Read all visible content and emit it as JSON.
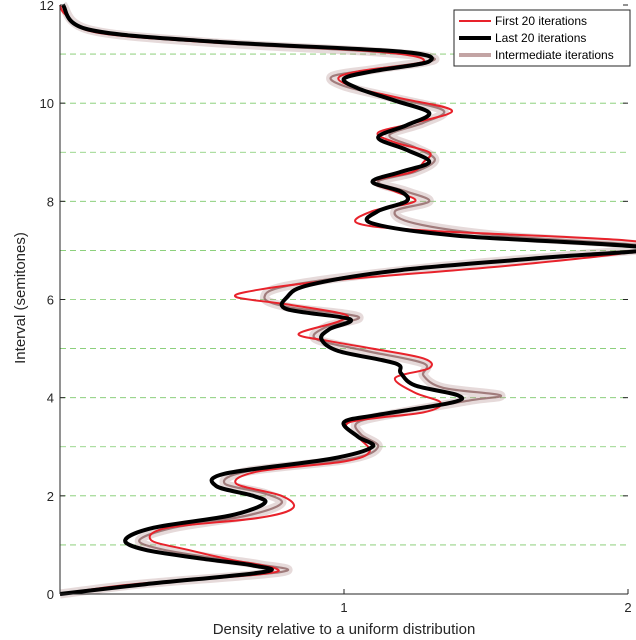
{
  "chart_data": {
    "type": "line",
    "title": "",
    "xlabel": "Density relative to a uniform distribution",
    "ylabel": "Interval (semitones)",
    "xlim": [
      0,
      2
    ],
    "ylim": [
      0,
      12
    ],
    "x_ticks": [
      1,
      2
    ],
    "x_tick_labels": [
      "1",
      "2"
    ],
    "y_ticks": [
      0,
      2,
      4,
      6,
      8,
      10,
      12
    ],
    "y_tick_labels": [
      "0",
      "2",
      "4",
      "6",
      "8",
      "10",
      "12"
    ],
    "reference_gridlines_y": [
      1,
      2,
      3,
      4,
      5,
      6,
      7,
      8,
      9,
      10,
      11
    ],
    "grid": "horizontal dashed reference lines at each semitone",
    "legend_position": "top-right",
    "colors": {
      "first": "#e8222b",
      "last": "#000000",
      "intermediate": "#b89494",
      "gridline": "#7cc96a",
      "axis": "#262626"
    },
    "series": [
      {
        "name": "First 20 iterations",
        "points": [
          [
            0.0,
            0.0
          ],
          [
            0.26,
            0.2
          ],
          [
            0.7,
            0.4
          ],
          [
            0.76,
            0.52
          ],
          [
            0.6,
            0.7
          ],
          [
            0.45,
            0.9
          ],
          [
            0.32,
            1.1
          ],
          [
            0.38,
            1.35
          ],
          [
            0.7,
            1.55
          ],
          [
            0.82,
            1.75
          ],
          [
            0.78,
            2.0
          ],
          [
            0.62,
            2.25
          ],
          [
            0.7,
            2.5
          ],
          [
            1.0,
            2.7
          ],
          [
            1.09,
            2.9
          ],
          [
            1.05,
            3.2
          ],
          [
            1.02,
            3.5
          ],
          [
            1.28,
            3.7
          ],
          [
            1.34,
            3.9
          ],
          [
            1.25,
            4.1
          ],
          [
            1.18,
            4.4
          ],
          [
            1.3,
            4.6
          ],
          [
            1.28,
            4.8
          ],
          [
            1.1,
            5.0
          ],
          [
            0.95,
            5.15
          ],
          [
            0.84,
            5.3
          ],
          [
            0.98,
            5.55
          ],
          [
            1.0,
            5.7
          ],
          [
            0.8,
            5.9
          ],
          [
            0.62,
            6.05
          ],
          [
            0.7,
            6.2
          ],
          [
            0.98,
            6.4
          ],
          [
            1.6,
            6.7
          ],
          [
            2.05,
            7.0
          ],
          [
            2.0,
            7.2
          ],
          [
            1.3,
            7.4
          ],
          [
            1.05,
            7.55
          ],
          [
            1.1,
            7.8
          ],
          [
            1.25,
            8.0
          ],
          [
            1.18,
            8.2
          ],
          [
            1.1,
            8.4
          ],
          [
            1.24,
            8.6
          ],
          [
            1.28,
            8.8
          ],
          [
            1.3,
            9.0
          ],
          [
            1.18,
            9.2
          ],
          [
            1.12,
            9.4
          ],
          [
            1.25,
            9.6
          ],
          [
            1.38,
            9.85
          ],
          [
            1.2,
            10.1
          ],
          [
            1.05,
            10.3
          ],
          [
            0.98,
            10.5
          ],
          [
            1.05,
            10.65
          ],
          [
            1.28,
            10.85
          ],
          [
            1.12,
            11.05
          ],
          [
            0.5,
            11.25
          ],
          [
            0.12,
            11.45
          ],
          [
            0.02,
            11.8
          ],
          [
            0.0,
            12.0
          ]
        ]
      },
      {
        "name": "Last 20 iterations",
        "points": [
          [
            0.0,
            0.0
          ],
          [
            0.3,
            0.2
          ],
          [
            0.72,
            0.45
          ],
          [
            0.68,
            0.58
          ],
          [
            0.5,
            0.72
          ],
          [
            0.3,
            0.9
          ],
          [
            0.23,
            1.1
          ],
          [
            0.33,
            1.35
          ],
          [
            0.6,
            1.6
          ],
          [
            0.72,
            1.85
          ],
          [
            0.68,
            2.0
          ],
          [
            0.55,
            2.2
          ],
          [
            0.58,
            2.45
          ],
          [
            0.95,
            2.75
          ],
          [
            1.1,
            3.0
          ],
          [
            1.05,
            3.2
          ],
          [
            1.0,
            3.5
          ],
          [
            1.12,
            3.65
          ],
          [
            1.38,
            3.9
          ],
          [
            1.4,
            4.05
          ],
          [
            1.25,
            4.25
          ],
          [
            1.2,
            4.5
          ],
          [
            1.18,
            4.7
          ],
          [
            0.98,
            4.95
          ],
          [
            0.92,
            5.2
          ],
          [
            0.95,
            5.4
          ],
          [
            1.02,
            5.6
          ],
          [
            0.8,
            5.8
          ],
          [
            0.8,
            6.05
          ],
          [
            0.88,
            6.3
          ],
          [
            1.2,
            6.6
          ],
          [
            1.7,
            6.85
          ],
          [
            2.07,
            7.05
          ],
          [
            1.4,
            7.3
          ],
          [
            1.1,
            7.55
          ],
          [
            1.12,
            7.8
          ],
          [
            1.22,
            8.0
          ],
          [
            1.2,
            8.2
          ],
          [
            1.1,
            8.4
          ],
          [
            1.2,
            8.6
          ],
          [
            1.3,
            8.8
          ],
          [
            1.22,
            9.05
          ],
          [
            1.12,
            9.3
          ],
          [
            1.22,
            9.55
          ],
          [
            1.3,
            9.8
          ],
          [
            1.18,
            10.05
          ],
          [
            1.05,
            10.3
          ],
          [
            1.0,
            10.5
          ],
          [
            1.1,
            10.65
          ],
          [
            1.3,
            10.85
          ],
          [
            1.2,
            11.05
          ],
          [
            0.55,
            11.25
          ],
          [
            0.1,
            11.5
          ],
          [
            0.01,
            12.0
          ]
        ]
      },
      {
        "name": "Intermediate iterations",
        "points": [
          [
            0.0,
            0.0
          ],
          [
            0.28,
            0.2
          ],
          [
            0.78,
            0.45
          ],
          [
            0.7,
            0.6
          ],
          [
            0.52,
            0.75
          ],
          [
            0.35,
            0.92
          ],
          [
            0.28,
            1.1
          ],
          [
            0.4,
            1.35
          ],
          [
            0.66,
            1.6
          ],
          [
            0.78,
            1.85
          ],
          [
            0.72,
            2.05
          ],
          [
            0.58,
            2.25
          ],
          [
            0.66,
            2.5
          ],
          [
            1.02,
            2.75
          ],
          [
            1.12,
            3.0
          ],
          [
            1.06,
            3.25
          ],
          [
            1.05,
            3.5
          ],
          [
            1.2,
            3.7
          ],
          [
            1.45,
            3.95
          ],
          [
            1.55,
            4.05
          ],
          [
            1.35,
            4.2
          ],
          [
            1.28,
            4.45
          ],
          [
            1.28,
            4.7
          ],
          [
            1.08,
            4.95
          ],
          [
            0.9,
            5.2
          ],
          [
            0.94,
            5.45
          ],
          [
            1.05,
            5.65
          ],
          [
            0.8,
            5.85
          ],
          [
            0.72,
            6.05
          ],
          [
            0.82,
            6.3
          ],
          [
            1.3,
            6.65
          ],
          [
            1.8,
            6.9
          ],
          [
            2.08,
            7.08
          ],
          [
            1.55,
            7.3
          ],
          [
            1.25,
            7.55
          ],
          [
            1.18,
            7.8
          ],
          [
            1.3,
            8.0
          ],
          [
            1.22,
            8.2
          ],
          [
            1.12,
            8.4
          ],
          [
            1.25,
            8.6
          ],
          [
            1.32,
            8.85
          ],
          [
            1.25,
            9.1
          ],
          [
            1.16,
            9.35
          ],
          [
            1.28,
            9.6
          ],
          [
            1.35,
            9.85
          ],
          [
            1.18,
            10.1
          ],
          [
            1.0,
            10.35
          ],
          [
            0.96,
            10.55
          ],
          [
            1.12,
            10.7
          ],
          [
            1.32,
            10.9
          ],
          [
            1.1,
            11.05
          ],
          [
            0.5,
            11.25
          ],
          [
            0.1,
            11.5
          ],
          [
            0.01,
            12.0
          ]
        ]
      }
    ]
  }
}
